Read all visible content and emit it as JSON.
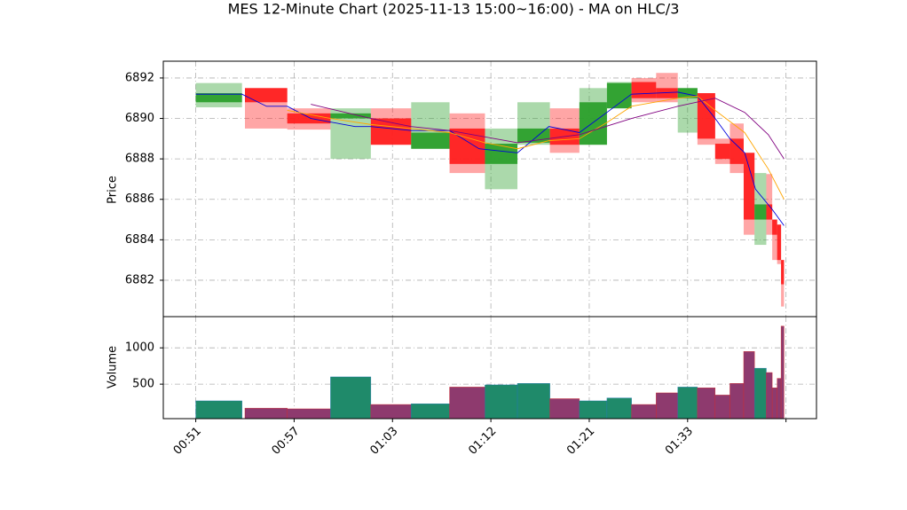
{
  "chart_data": [
    {
      "type": "candlestick",
      "title": "MES 12-Minute Chart (2025-11-13 15:00~16:00) - MA on HLC/3",
      "ylabel": "Price",
      "xlim": [
        -0.33,
        6.31
      ],
      "ylim": [
        6880.2,
        6892.83
      ],
      "yticks": [
        6882,
        6884,
        6886,
        6888,
        6890,
        6892
      ],
      "grid": true,
      "up_color": "#2ca02c",
      "down_color": "#ff2020",
      "x": [
        0,
        0.5,
        0.93,
        1.37,
        1.78,
        2.19,
        2.58,
        2.94,
        3.27,
        3.6,
        3.9,
        4.18,
        4.43,
        4.68,
        4.9,
        5.1,
        5.28,
        5.43,
        5.57,
        5.68,
        5.8,
        5.86,
        5.91,
        5.95
      ],
      "x_end": [
        0.47,
        0.93,
        1.37,
        1.78,
        2.19,
        2.58,
        2.94,
        3.27,
        3.6,
        3.9,
        4.18,
        4.43,
        4.68,
        4.9,
        5.1,
        5.28,
        5.43,
        5.57,
        5.68,
        5.8,
        5.86,
        5.91,
        5.95,
        5.98
      ],
      "open": [
        6890.8,
        6891.5,
        6890.25,
        6890.0,
        6890.0,
        6888.5,
        6889.5,
        6887.75,
        6888.8,
        6889.5,
        6888.7,
        6890.5,
        6891.8,
        6891.5,
        6891.0,
        6891.25,
        6888.75,
        6889.0,
        6888.3,
        6885.0,
        6885.75,
        6885.0,
        6884.75,
        6883.0
      ],
      "high": [
        6891.75,
        6891.5,
        6890.5,
        6890.5,
        6890.5,
        6890.8,
        6890.25,
        6889.5,
        6890.8,
        6890.5,
        6891.5,
        6891.8,
        6892.0,
        6892.25,
        6891.5,
        6891.25,
        6889.0,
        6889.75,
        6888.3,
        6887.3,
        6887.25,
        6885.0,
        6884.75,
        6883.0
      ],
      "low": [
        6890.55,
        6889.5,
        6889.45,
        6888.0,
        6888.7,
        6888.5,
        6887.3,
        6886.5,
        6888.7,
        6888.3,
        6888.7,
        6890.5,
        6890.8,
        6890.8,
        6889.3,
        6888.7,
        6887.75,
        6887.3,
        6884.25,
        6883.75,
        6884.25,
        6883.0,
        6882.8,
        6880.7
      ],
      "close": [
        6891.25,
        6890.8,
        6889.75,
        6890.25,
        6888.7,
        6889.3,
        6887.75,
        6888.75,
        6889.5,
        6888.7,
        6890.8,
        6891.75,
        6891.0,
        6891.0,
        6891.5,
        6889.0,
        6888.0,
        6887.75,
        6885.0,
        6885.75,
        6885.0,
        6884.25,
        6883.0,
        6881.8
      ],
      "lines": [
        {
          "color": "#0000dd",
          "x": [
            0,
            0.47,
            0.72,
            0.93,
            1.17,
            1.62,
            1.78,
            2.19,
            2.58,
            2.88,
            3.27,
            3.59,
            3.9,
            4.18,
            4.43,
            4.9,
            5.1,
            5.28,
            5.43,
            5.58,
            5.69,
            5.86,
            5.98
          ],
          "values": [
            6891.2,
            6891.2,
            6890.6,
            6890.6,
            6890.0,
            6889.6,
            6889.6,
            6889.4,
            6889.4,
            6888.5,
            6888.3,
            6889.6,
            6889.3,
            6890.3,
            6891.2,
            6891.3,
            6891.1,
            6890.0,
            6889.0,
            6888.3,
            6886.5,
            6885.5,
            6884.7
          ]
        },
        {
          "color": "#ffa500",
          "x": [
            0.93,
            1.37,
            1.78,
            2.19,
            2.58,
            2.94,
            3.27,
            3.59,
            3.9,
            4.18,
            4.43,
            4.9,
            5.1,
            5.28,
            5.58,
            5.82,
            5.98
          ],
          "values": [
            6890.4,
            6890.0,
            6889.7,
            6889.5,
            6889.3,
            6888.8,
            6888.5,
            6888.9,
            6889.0,
            6889.8,
            6890.6,
            6891.0,
            6891.1,
            6890.4,
            6889.3,
            6887.5,
            6886.0
          ]
        },
        {
          "color": "#800080",
          "x": [
            1.17,
            1.78,
            2.19,
            2.58,
            3.27,
            3.9,
            4.43,
            4.9,
            5.28,
            5.58,
            5.82,
            5.98
          ],
          "values": [
            6890.7,
            6890.0,
            6889.6,
            6889.4,
            6888.8,
            6889.2,
            6890.0,
            6890.6,
            6891.0,
            6890.3,
            6889.2,
            6888.0
          ]
        }
      ]
    },
    {
      "type": "bar",
      "ylabel": "Volume",
      "xlim": [
        -0.33,
        6.31
      ],
      "ylim": [
        25,
        1430
      ],
      "yticks": [
        500,
        1000
      ],
      "grid": true,
      "up_color": "#1f8a6a",
      "down_color": "#8e3a6e",
      "xticks": [
        {
          "value": 0,
          "label": "00:51"
        },
        {
          "value": 1,
          "label": "00:57"
        },
        {
          "value": 2,
          "label": "01:03"
        },
        {
          "value": 3,
          "label": "01:12"
        },
        {
          "value": 4,
          "label": "01:21"
        },
        {
          "value": 5,
          "label": "01:33"
        },
        {
          "value": 6,
          "label": null
        }
      ],
      "x": [
        0,
        0.5,
        0.93,
        1.37,
        1.78,
        2.19,
        2.58,
        2.94,
        3.27,
        3.6,
        3.9,
        4.18,
        4.43,
        4.68,
        4.9,
        5.1,
        5.28,
        5.43,
        5.57,
        5.68,
        5.8,
        5.86,
        5.91,
        5.95
      ],
      "x_end": [
        0.47,
        0.93,
        1.37,
        1.78,
        2.19,
        2.58,
        2.94,
        3.27,
        3.6,
        3.9,
        4.18,
        4.43,
        4.68,
        4.9,
        5.1,
        5.28,
        5.43,
        5.57,
        5.68,
        5.8,
        5.86,
        5.91,
        5.95,
        5.98
      ],
      "values": [
        270,
        170,
        160,
        600,
        220,
        230,
        460,
        490,
        510,
        300,
        270,
        310,
        220,
        380,
        460,
        450,
        350,
        510,
        950,
        720,
        660,
        450,
        580,
        1300
      ]
    }
  ]
}
